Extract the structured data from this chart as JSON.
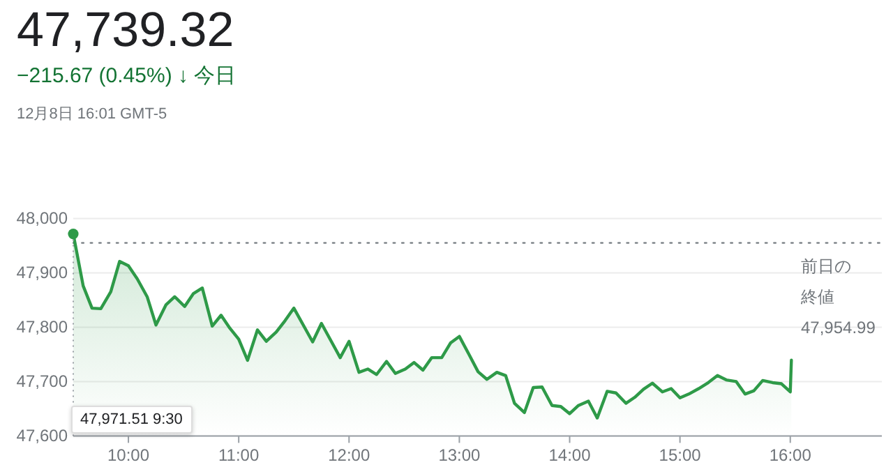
{
  "chart_data": {
    "type": "area",
    "title": "47,739.32",
    "subtitle": "−215.67 (0.45%) ↓ 今日",
    "annotations": [
      "12月8日 16:01 GMT-5",
      "47,971.51 9:30"
    ],
    "x": [
      9.5,
      9.59,
      9.67,
      9.75,
      9.84,
      9.92,
      10.0,
      10.08,
      10.17,
      10.25,
      10.34,
      10.42,
      10.51,
      10.59,
      10.67,
      10.76,
      10.84,
      10.92,
      11.0,
      11.08,
      11.17,
      11.25,
      11.34,
      11.42,
      11.5,
      11.67,
      11.75,
      11.92,
      12.0,
      12.09,
      12.17,
      12.25,
      12.34,
      12.42,
      12.51,
      12.59,
      12.67,
      12.75,
      12.84,
      12.92,
      13.0,
      13.09,
      13.17,
      13.25,
      13.34,
      13.42,
      13.5,
      13.59,
      13.67,
      13.75,
      13.84,
      13.92,
      14.0,
      14.08,
      14.17,
      14.25,
      14.34,
      14.42,
      14.51,
      14.59,
      14.67,
      14.75,
      14.84,
      14.92,
      15.0,
      15.08,
      15.17,
      15.25,
      15.34,
      15.42,
      15.51,
      15.59,
      15.67,
      15.75,
      15.84,
      15.92,
      16.0,
      16.01
    ],
    "values": [
      47971.51,
      47876,
      47835,
      47834,
      47865,
      47921,
      47913,
      47889,
      47856,
      47804,
      47841,
      47856,
      47838,
      47862,
      47872,
      47802,
      47822,
      47798,
      47778,
      47739,
      47795,
      47774,
      47791,
      47812,
      47835,
      47773,
      47807,
      47744,
      47774,
      47717,
      47723,
      47713,
      47737,
      47715,
      47723,
      47735,
      47721,
      47744,
      47744,
      47771,
      47783,
      47749,
      47718,
      47704,
      47717,
      47711,
      47660,
      47643,
      47689,
      47690,
      47656,
      47654,
      47641,
      47656,
      47664,
      47633,
      47682,
      47679,
      47660,
      47671,
      47686,
      47697,
      47681,
      47687,
      47670,
      47677,
      47687,
      47697,
      47711,
      47703,
      47700,
      47677,
      47683,
      47702,
      47698,
      47696,
      47681,
      47739.32
    ],
    "color": "#2e9a48",
    "xlim": [
      9.5,
      16.83
    ],
    "xticks": [
      {
        "value": 10,
        "label": "10:00"
      },
      {
        "value": 11,
        "label": "11:00"
      },
      {
        "value": 12,
        "label": "12:00"
      },
      {
        "value": 13,
        "label": "13:00"
      },
      {
        "value": 14,
        "label": "14:00"
      },
      {
        "value": 15,
        "label": "15:00"
      },
      {
        "value": 16,
        "label": "16:00"
      }
    ],
    "ylim": [
      47600,
      48000
    ],
    "yticks": [
      {
        "value": 47600,
        "label": "47,600"
      },
      {
        "value": 47700,
        "label": "47,700"
      },
      {
        "value": 47800,
        "label": "47,800"
      },
      {
        "value": 47900,
        "label": "47,900"
      },
      {
        "value": 48000,
        "label": "48,000"
      }
    ],
    "grid": "y",
    "ref_lines": [
      {
        "axis": "y",
        "value": 47954.99,
        "label": "前日の終値 47,954.99",
        "line_style": "dotted"
      }
    ]
  }
}
